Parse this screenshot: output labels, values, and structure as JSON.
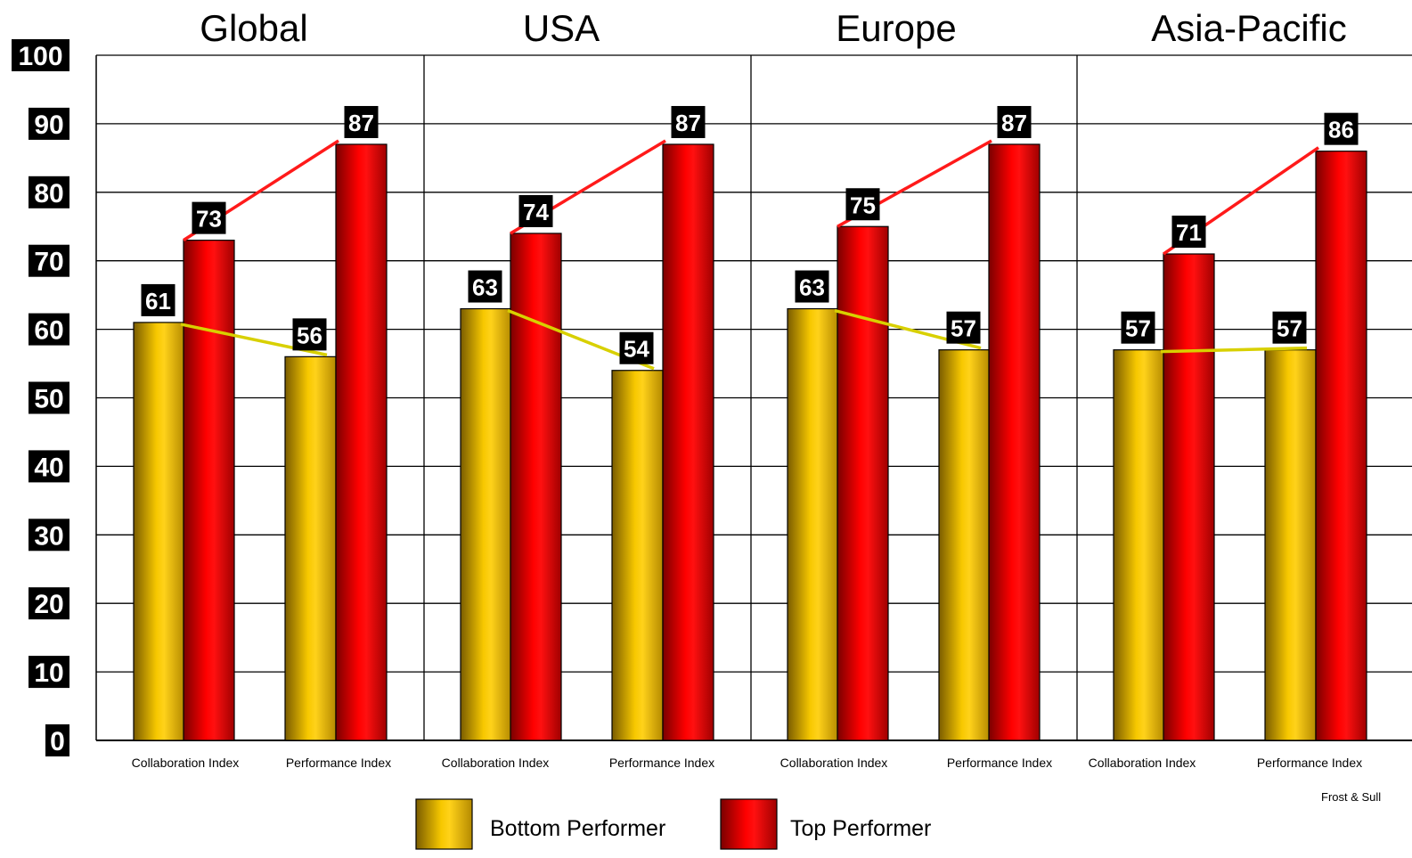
{
  "chart_data": {
    "type": "bar",
    "ylim": [
      0,
      100
    ],
    "yticks": [
      "0",
      "10",
      "20",
      "30",
      "40",
      "50",
      "60",
      "70",
      "80",
      "90",
      "100"
    ],
    "grid": true,
    "legend_position": "bottom-center",
    "groups": [
      {
        "title": "Global",
        "categories": [
          "Collaboration  Index",
          "Performance  Index"
        ],
        "series": [
          {
            "name": "Bottom Performer",
            "values": [
              61,
              56
            ]
          },
          {
            "name": "Top Performer",
            "values": [
              73,
              87
            ]
          }
        ]
      },
      {
        "title": "USA",
        "categories": [
          "Collaboration  Index",
          "Performance Index"
        ],
        "series": [
          {
            "name": "Bottom Performer",
            "values": [
              63,
              54
            ]
          },
          {
            "name": "Top Performer",
            "values": [
              74,
              87
            ]
          }
        ]
      },
      {
        "title": "Europe",
        "categories": [
          "Collaboration  Index",
          "Performance Index"
        ],
        "series": [
          {
            "name": "Bottom Performer",
            "values": [
              63,
              57
            ]
          },
          {
            "name": "Top Performer",
            "values": [
              75,
              87
            ]
          }
        ]
      },
      {
        "title": "Asia-Pacific",
        "categories": [
          "Collaboration Index",
          "Performance Index"
        ],
        "series": [
          {
            "name": "Bottom Performer",
            "values": [
              57,
              57
            ]
          },
          {
            "name": "Top Performer",
            "values": [
              71,
              86
            ]
          }
        ]
      }
    ],
    "legend": [
      {
        "name": "Bottom Performer",
        "color": "#f2c200"
      },
      {
        "name": "Top Performer",
        "color": "#ff0000"
      }
    ],
    "source": "Frost  & Sull",
    "colors": {
      "bottom": "#f2c200",
      "bottom_dark": "#8a6a00",
      "top": "#ff0000",
      "top_dark": "#8b0000",
      "bottom_trend": "#d8d000",
      "top_trend": "#ff1a1a"
    }
  }
}
